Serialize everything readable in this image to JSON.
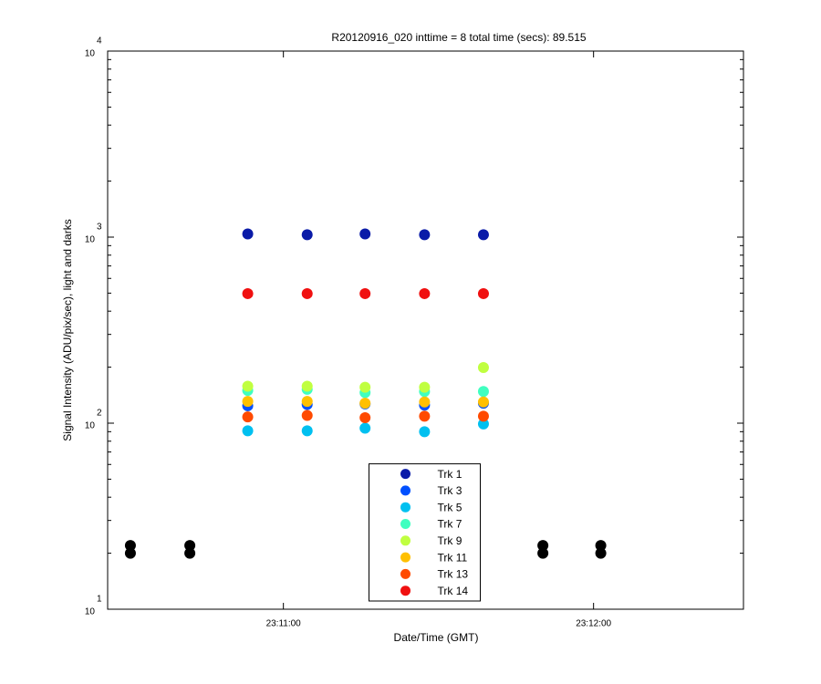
{
  "chart_data": {
    "type": "scatter",
    "title": "R20120916_020 inttime = 8 total time (secs): 89.515",
    "x_label": "Date/Time (GMT)",
    "y_label": "Signal Intensity (ADU/pix/sec), light and darks",
    "yscale": "log",
    "grid": false,
    "legend": "south",
    "x": [
      83430.4,
      83441.9,
      83453.1,
      83464.6,
      83475.8,
      83487.3,
      83498.7,
      83510.2,
      83521.4
    ],
    "xlim": [
      83426,
      83549
    ],
    "xticks": [
      {
        "value": 83460,
        "label": "23:11:00"
      },
      {
        "value": 83520,
        "label": "23:12:00"
      }
    ],
    "ylim": [
      10,
      10000
    ],
    "yticks": [
      {
        "value": 10,
        "label": "10",
        "exponent": "1"
      },
      {
        "value": 100,
        "label": "10",
        "exponent": "2"
      },
      {
        "value": 1000,
        "label": "10",
        "exponent": "3"
      },
      {
        "value": 10000,
        "label": "10",
        "exponent": "4"
      }
    ],
    "series": [
      {
        "name": "Trk 1",
        "color": "#0a1ba8",
        "values": [
          null,
          null,
          1040,
          1030,
          1040,
          1030,
          1030,
          null,
          null
        ]
      },
      {
        "name": "Trk 3",
        "color": "#0050ff",
        "values": [
          null,
          null,
          124,
          126,
          127,
          125,
          128,
          null,
          null
        ]
      },
      {
        "name": "Trk 5",
        "color": "#00c0f0",
        "values": [
          null,
          null,
          91,
          91,
          94,
          90,
          99,
          null,
          null
        ]
      },
      {
        "name": "Trk 7",
        "color": "#40ffc0",
        "values": [
          null,
          null,
          150,
          152,
          146,
          148,
          148,
          null,
          null
        ]
      },
      {
        "name": "Trk 9",
        "color": "#c0ff40",
        "values": [
          null,
          null,
          158,
          158,
          156,
          156,
          199,
          null,
          null
        ]
      },
      {
        "name": "Trk 11",
        "color": "#ffc000",
        "values": [
          null,
          null,
          131,
          131,
          128,
          130,
          130,
          null,
          null
        ]
      },
      {
        "name": "Trk 13",
        "color": "#ff4a00",
        "values": [
          null,
          null,
          108,
          110,
          107,
          109,
          109,
          null,
          null
        ]
      },
      {
        "name": "Trk 14",
        "color": "#f01010",
        "values": [
          null,
          null,
          497,
          497,
          497,
          497,
          497,
          null,
          null
        ]
      },
      {
        "color": "#000000",
        "values": [
          22,
          22,
          null,
          null,
          null,
          null,
          null,
          22,
          22
        ]
      },
      {
        "color": "#000000",
        "values": [
          20,
          20,
          null,
          null,
          null,
          null,
          null,
          20,
          20
        ]
      }
    ]
  }
}
